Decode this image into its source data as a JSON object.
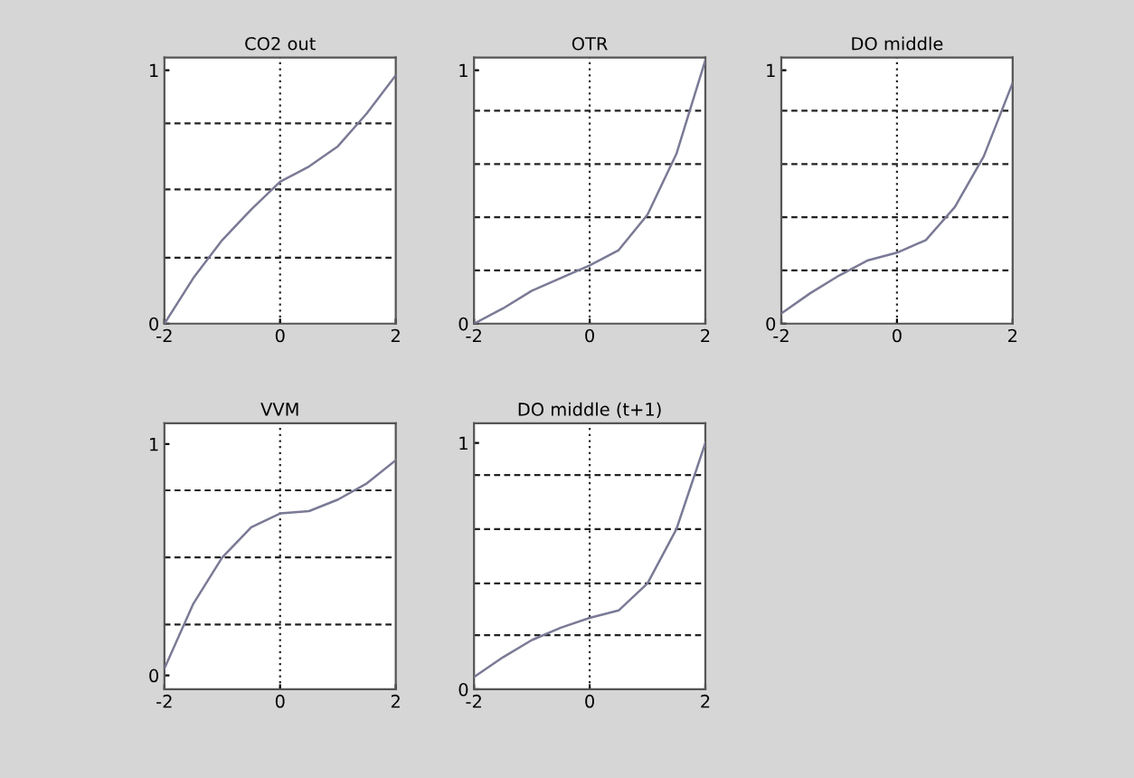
{
  "chart_data": [
    {
      "type": "line",
      "title": "CO2 out",
      "x": [
        -2,
        -1.5,
        -1,
        -0.5,
        0,
        0.5,
        1,
        1.5,
        2
      ],
      "xlim": [
        -2,
        2
      ],
      "xticks": [
        -2,
        0,
        2
      ],
      "ylim": [
        0,
        1.05
      ],
      "yticks": [
        0,
        1
      ],
      "series": [
        {
          "color": "#7a7a96",
          "values": [
            0,
            0.18,
            0.33,
            0.45,
            0.56,
            0.62,
            0.7,
            0.83,
            0.98
          ]
        }
      ],
      "ref_lines": [
        {
          "axis": "x",
          "value": 0,
          "line_style": "dotted"
        },
        {
          "axis": "y",
          "value": 0.26,
          "line_style": "dashed"
        },
        {
          "axis": "y",
          "value": 0.53,
          "line_style": "dashed"
        },
        {
          "axis": "y",
          "value": 0.79,
          "line_style": "dashed"
        }
      ]
    },
    {
      "type": "line",
      "title": "OTR",
      "x": [
        -2,
        -1.5,
        -1,
        -0.5,
        0,
        0.5,
        1,
        1.5,
        2
      ],
      "xlim": [
        -2,
        2
      ],
      "xticks": [
        -2,
        0,
        2
      ],
      "ylim": [
        0,
        1.05
      ],
      "yticks": [
        0,
        1
      ],
      "series": [
        {
          "color": "#7a7a96",
          "values": [
            0,
            0.06,
            0.13,
            0.18,
            0.23,
            0.29,
            0.43,
            0.67,
            1.04
          ]
        }
      ],
      "ref_lines": [
        {
          "axis": "x",
          "value": 0,
          "line_style": "dotted"
        },
        {
          "axis": "y",
          "value": 0.21,
          "line_style": "dashed"
        },
        {
          "axis": "y",
          "value": 0.42,
          "line_style": "dashed"
        },
        {
          "axis": "y",
          "value": 0.63,
          "line_style": "dashed"
        },
        {
          "axis": "y",
          "value": 0.84,
          "line_style": "dashed"
        }
      ]
    },
    {
      "type": "line",
      "title": "DO middle",
      "x": [
        -2,
        -1.5,
        -1,
        -0.5,
        0,
        0.5,
        1,
        1.5,
        2
      ],
      "xlim": [
        -2,
        2
      ],
      "xticks": [
        -2,
        0,
        2
      ],
      "ylim": [
        0,
        1.05
      ],
      "yticks": [
        0,
        1
      ],
      "series": [
        {
          "color": "#7a7a96",
          "values": [
            0.04,
            0.12,
            0.19,
            0.25,
            0.28,
            0.33,
            0.46,
            0.66,
            0.95
          ]
        }
      ],
      "ref_lines": [
        {
          "axis": "x",
          "value": 0,
          "line_style": "dotted"
        },
        {
          "axis": "y",
          "value": 0.21,
          "line_style": "dashed"
        },
        {
          "axis": "y",
          "value": 0.42,
          "line_style": "dashed"
        },
        {
          "axis": "y",
          "value": 0.63,
          "line_style": "dashed"
        },
        {
          "axis": "y",
          "value": 0.84,
          "line_style": "dashed"
        }
      ]
    },
    {
      "type": "line",
      "title": "VVM",
      "x": [
        -2,
        -1.5,
        -1,
        -0.5,
        0,
        0.5,
        1,
        1.5,
        2
      ],
      "xlim": [
        -2,
        2
      ],
      "xticks": [
        -2,
        0,
        2
      ],
      "ylim": [
        -0.06,
        1.09
      ],
      "yticks": [
        0,
        1
      ],
      "series": [
        {
          "color": "#7a7a96",
          "values": [
            0.03,
            0.31,
            0.51,
            0.64,
            0.7,
            0.71,
            0.76,
            0.83,
            0.93
          ]
        }
      ],
      "ref_lines": [
        {
          "axis": "x",
          "value": 0,
          "line_style": "dotted"
        },
        {
          "axis": "y",
          "value": 0.22,
          "line_style": "dashed"
        },
        {
          "axis": "y",
          "value": 0.51,
          "line_style": "dashed"
        },
        {
          "axis": "y",
          "value": 0.8,
          "line_style": "dashed"
        }
      ]
    },
    {
      "type": "line",
      "title": "DO middle (t+1)",
      "x": [
        -2,
        -1.5,
        -1,
        -0.5,
        0,
        0.5,
        1,
        1.5,
        2
      ],
      "xlim": [
        -2,
        2
      ],
      "xticks": [
        -2,
        0,
        2
      ],
      "ylim": [
        0,
        1.08
      ],
      "yticks": [
        0,
        1
      ],
      "series": [
        {
          "color": "#7a7a96",
          "values": [
            0.05,
            0.13,
            0.2,
            0.25,
            0.29,
            0.32,
            0.43,
            0.65,
            1.0
          ]
        }
      ],
      "ref_lines": [
        {
          "axis": "x",
          "value": 0,
          "line_style": "dotted"
        },
        {
          "axis": "y",
          "value": 0.22,
          "line_style": "dashed"
        },
        {
          "axis": "y",
          "value": 0.43,
          "line_style": "dashed"
        },
        {
          "axis": "y",
          "value": 0.65,
          "line_style": "dashed"
        },
        {
          "axis": "y",
          "value": 0.87,
          "line_style": "dashed"
        }
      ]
    }
  ]
}
